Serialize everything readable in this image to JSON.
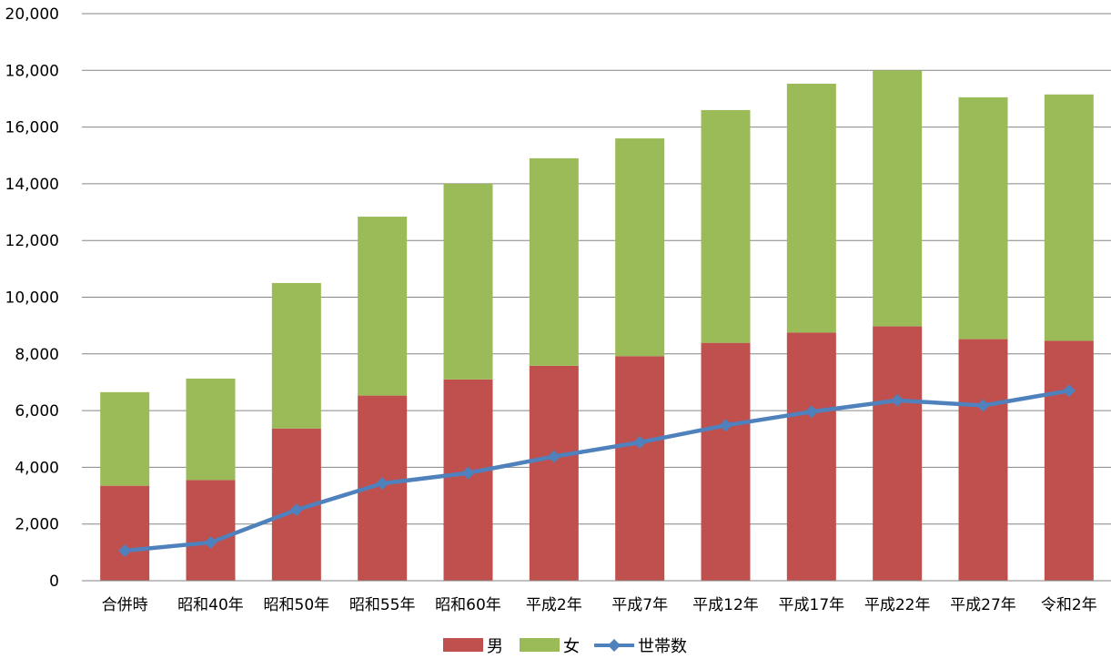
{
  "chart_data": {
    "type": "bar",
    "stacked": true,
    "categories": [
      "合併時",
      "昭和40年",
      "昭和50年",
      "昭和55年",
      "昭和60年",
      "平成2年",
      "平成7年",
      "平成12年",
      "平成17年",
      "平成22年",
      "平成27年",
      "令和2年"
    ],
    "series": [
      {
        "name": "男",
        "type": "bar",
        "color": "#c0504d",
        "values": [
          3350,
          3550,
          5370,
          6530,
          7100,
          7580,
          7920,
          8390,
          8750,
          8970,
          8520,
          8460
        ]
      },
      {
        "name": "女",
        "type": "bar",
        "color": "#9bbb59",
        "values": [
          3300,
          3580,
          5130,
          6310,
          6900,
          7320,
          7680,
          8210,
          8780,
          9030,
          8530,
          8690
        ]
      },
      {
        "name": "世帯数",
        "type": "line",
        "marker": "diamond",
        "color": "#4f81bd",
        "values": [
          1060,
          1350,
          2500,
          3430,
          3800,
          4380,
          4880,
          5480,
          5960,
          6360,
          6180,
          6700
        ]
      }
    ],
    "ylim": [
      0,
      20000
    ],
    "yticks": [
      "0",
      "2,000",
      "4,000",
      "6,000",
      "8,000",
      "10,000",
      "12,000",
      "14,000",
      "16,000",
      "18,000",
      "20,000"
    ],
    "ytick_values": [
      0,
      2000,
      4000,
      6000,
      8000,
      10000,
      12000,
      14000,
      16000,
      18000,
      20000
    ],
    "grid": true,
    "legend_position": "bottom",
    "title": "",
    "xlabel": "",
    "ylabel": ""
  }
}
